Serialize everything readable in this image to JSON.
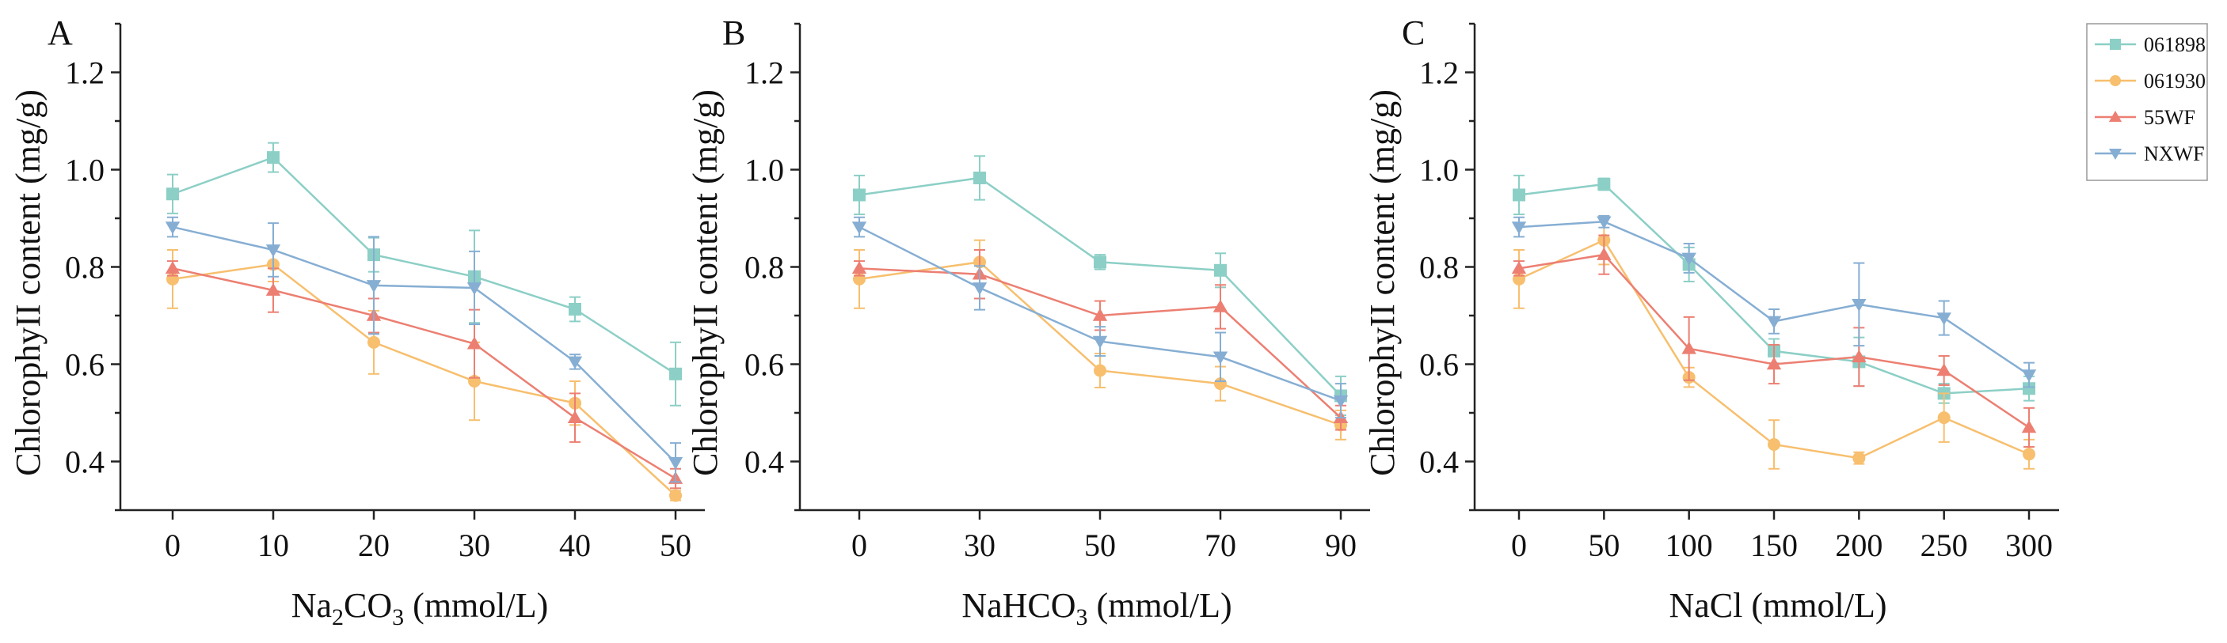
{
  "legend": {
    "entries": [
      {
        "name": "061898",
        "color": "#8ccfc6",
        "marker": "square"
      },
      {
        "name": "061930",
        "color": "#f7bf6e",
        "marker": "circle"
      },
      {
        "name": "55WF",
        "color": "#ec7f72",
        "marker": "triangle-up"
      },
      {
        "name": "NXWF",
        "color": "#86aed3",
        "marker": "triangle-down"
      }
    ]
  },
  "chart_data": [
    {
      "panel": "A",
      "type": "line",
      "ylabel": "ChlorophyII content (mg/g)",
      "xlabel_main": "Na",
      "xlabel_sub": "2",
      "xlabel_mid": "CO",
      "xlabel_sub2": "3",
      "xlabel_tail": " (mmol/L)",
      "categories": [
        "0",
        "10",
        "20",
        "30",
        "40",
        "50"
      ],
      "ylim": [
        0.3,
        1.3
      ],
      "yticks": [
        "0.4",
        "0.6",
        "0.8",
        "1.0",
        "1.2"
      ],
      "series": [
        {
          "name": "061898",
          "values": [
            0.95,
            1.025,
            0.825,
            0.78,
            0.713,
            0.58
          ],
          "errors": [
            0.04,
            0.03,
            0.035,
            0.095,
            0.025,
            0.065
          ]
        },
        {
          "name": "061930",
          "values": [
            0.775,
            0.805,
            0.645,
            0.565,
            0.52,
            0.33
          ],
          "errors": [
            0.06,
            0.035,
            0.065,
            0.08,
            0.045,
            0.01
          ]
        },
        {
          "name": "55WF",
          "values": [
            0.797,
            0.752,
            0.7,
            0.642,
            0.49,
            0.365
          ],
          "errors": [
            0.015,
            0.045,
            0.035,
            0.07,
            0.05,
            0.02
          ]
        },
        {
          "name": "NXWF",
          "values": [
            0.882,
            0.835,
            0.762,
            0.757,
            0.605,
            0.398
          ],
          "errors": [
            0.02,
            0.055,
            0.1,
            0.075,
            0.015,
            0.04
          ]
        }
      ]
    },
    {
      "panel": "B",
      "type": "line",
      "ylabel": "ChlorophyII content (mg/g)",
      "xlabel_main": "NaHCO",
      "xlabel_sub": "3",
      "xlabel_mid": "",
      "xlabel_sub2": "",
      "xlabel_tail": " (mmol/L)",
      "categories": [
        "0",
        "30",
        "50",
        "70",
        "90"
      ],
      "ylim": [
        0.3,
        1.3
      ],
      "yticks": [
        "0.4",
        "0.6",
        "0.8",
        "1.0",
        "1.2"
      ],
      "series": [
        {
          "name": "061898",
          "values": [
            0.948,
            0.983,
            0.81,
            0.793,
            0.535
          ],
          "errors": [
            0.04,
            0.045,
            0.015,
            0.035,
            0.04
          ]
        },
        {
          "name": "061930",
          "values": [
            0.775,
            0.81,
            0.587,
            0.56,
            0.475
          ],
          "errors": [
            0.06,
            0.045,
            0.035,
            0.035,
            0.03
          ]
        },
        {
          "name": "55WF",
          "values": [
            0.797,
            0.785,
            0.7,
            0.718,
            0.49
          ],
          "errors": [
            0.015,
            0.05,
            0.03,
            0.045,
            0.025
          ]
        },
        {
          "name": "NXWF",
          "values": [
            0.882,
            0.757,
            0.647,
            0.615,
            0.525
          ],
          "errors": [
            0.02,
            0.045,
            0.03,
            0.05,
            0.035
          ]
        }
      ]
    },
    {
      "panel": "C",
      "type": "line",
      "ylabel": "ChlorophyII content (mg/g)",
      "xlabel_main": "NaCl",
      "xlabel_sub": "",
      "xlabel_mid": "",
      "xlabel_sub2": "",
      "xlabel_tail": " (mmol/L)",
      "categories": [
        "0",
        "50",
        "100",
        "150",
        "200",
        "250",
        "300"
      ],
      "ylim": [
        0.3,
        1.3
      ],
      "yticks": [
        "0.4",
        "0.6",
        "0.8",
        "1.0",
        "1.2"
      ],
      "series": [
        {
          "name": "061898",
          "values": [
            0.948,
            0.97,
            0.805,
            0.627,
            0.605,
            0.54,
            0.55
          ],
          "errors": [
            0.04,
            0.012,
            0.035,
            0.025,
            0.05,
            0.02,
            0.025
          ]
        },
        {
          "name": "061930",
          "values": [
            0.775,
            0.855,
            0.573,
            0.435,
            0.407,
            0.49,
            0.415
          ],
          "errors": [
            0.06,
            0.05,
            0.02,
            0.05,
            0.012,
            0.05,
            0.03
          ]
        },
        {
          "name": "55WF",
          "values": [
            0.797,
            0.825,
            0.632,
            0.6,
            0.615,
            0.587,
            0.47
          ],
          "errors": [
            0.015,
            0.04,
            0.065,
            0.04,
            0.06,
            0.03,
            0.04
          ]
        },
        {
          "name": "NXWF",
          "values": [
            0.882,
            0.893,
            0.818,
            0.688,
            0.723,
            0.695,
            0.578
          ],
          "errors": [
            0.02,
            0.012,
            0.03,
            0.025,
            0.085,
            0.035,
            0.025
          ]
        }
      ]
    }
  ]
}
